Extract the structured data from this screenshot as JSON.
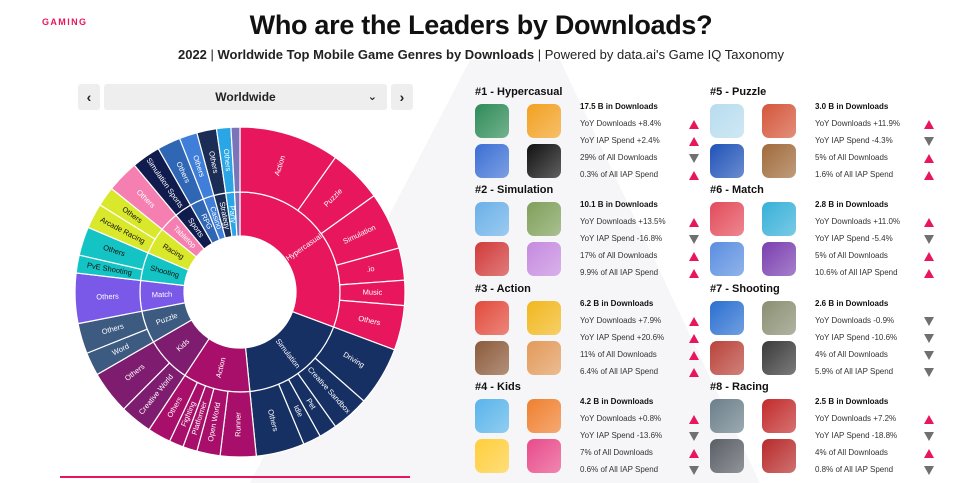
{
  "brand": "GAMING",
  "title": "Who are the Leaders by Downloads?",
  "subtitle": {
    "year": "2022",
    "sep": " | ",
    "main": "Worldwide Top Mobile Game Genres by Downloads",
    "sep2": " | ",
    "rest": "Powered by data.ai's Game IQ Taxonomy"
  },
  "region": {
    "selected": "Worldwide",
    "prev": "‹",
    "next": "›",
    "chevron": "⌄"
  },
  "colors": {
    "accent": "#e8175d",
    "arrow_up": "#e8175d",
    "arrow_down": "#707070"
  },
  "chart_data": {
    "type": "sunburst",
    "inner": [
      {
        "label": "Hypercasual",
        "value": 17.5,
        "color": "#e8175d"
      },
      {
        "label": "Simulation",
        "value": 10.1,
        "color": "#173063"
      },
      {
        "label": "Action",
        "value": 6.2,
        "color": "#a80f6a"
      },
      {
        "label": "Kids",
        "value": 4.2,
        "color": "#7e1c70"
      },
      {
        "label": "Puzzle",
        "value": 3.0,
        "color": "#3d5a80"
      },
      {
        "label": "Match",
        "value": 2.8,
        "color": "#7a58e8"
      },
      {
        "label": "Shooting",
        "value": 2.6,
        "color": "#14c4c4"
      },
      {
        "label": "Racing",
        "value": 2.5,
        "color": "#d9e82a"
      },
      {
        "label": "Tabletop",
        "value": 1.8,
        "color": "#f47fb0"
      },
      {
        "label": "Sports",
        "value": 1.6,
        "color": "#0f1c4d"
      },
      {
        "label": "RPG",
        "value": 1.3,
        "color": "#2f67b5"
      },
      {
        "label": "Casino",
        "value": 1.0,
        "color": "#3f7fd9"
      },
      {
        "label": "Strategy",
        "value": 1.1,
        "color": "#1b2d55"
      },
      {
        "label": "Party",
        "value": 0.8,
        "color": "#2aa6e6"
      },
      {
        "label": "",
        "value": 0.5,
        "color": "#7c74b8"
      }
    ],
    "outer": [
      {
        "parent": "Hypercasual",
        "label": "Action",
        "value": 5.6,
        "color": "#e8175d"
      },
      {
        "parent": "Hypercasual",
        "label": "Puzzle",
        "value": 3.0,
        "color": "#e8175d"
      },
      {
        "parent": "Hypercasual",
        "label": "Simulation",
        "value": 3.2,
        "color": "#e8175d"
      },
      {
        "parent": "Hypercasual",
        "label": ".io",
        "value": 1.8,
        "color": "#e8175d"
      },
      {
        "parent": "Hypercasual",
        "label": "Music",
        "value": 1.4,
        "color": "#e8175d"
      },
      {
        "parent": "Hypercasual",
        "label": "Others",
        "value": 2.5,
        "color": "#e8175d"
      },
      {
        "parent": "Simulation",
        "label": "Driving",
        "value": 3.3,
        "color": "#173063"
      },
      {
        "parent": "Simulation",
        "label": "Creative Sandbox",
        "value": 2.1,
        "color": "#173063"
      },
      {
        "parent": "Simulation",
        "label": "Pet",
        "value": 1.0,
        "color": "#173063"
      },
      {
        "parent": "Simulation",
        "label": "Idle",
        "value": 1.0,
        "color": "#173063"
      },
      {
        "parent": "Simulation",
        "label": "Others",
        "value": 2.7,
        "color": "#173063"
      },
      {
        "parent": "Action",
        "label": "Runner",
        "value": 2.0,
        "color": "#a80f6a"
      },
      {
        "parent": "Action",
        "label": "Open World",
        "value": 1.3,
        "color": "#a80f6a"
      },
      {
        "parent": "Action",
        "label": "Platformer",
        "value": 0.8,
        "color": "#a80f6a"
      },
      {
        "parent": "Action",
        "label": "Fighting",
        "value": 0.8,
        "color": "#a80f6a"
      },
      {
        "parent": "Action",
        "label": "Others",
        "value": 1.3,
        "color": "#a80f6a"
      },
      {
        "parent": "Kids",
        "label": "Creative World",
        "value": 1.8,
        "color": "#7e1c70"
      },
      {
        "parent": "Kids",
        "label": "Others",
        "value": 2.4,
        "color": "#7e1c70"
      },
      {
        "parent": "Puzzle",
        "label": "Word",
        "value": 1.3,
        "color": "#3d5a80"
      },
      {
        "parent": "Puzzle",
        "label": "Others",
        "value": 1.7,
        "color": "#3d5a80"
      },
      {
        "parent": "Match",
        "label": "Others",
        "value": 2.8,
        "color": "#7a58e8"
      },
      {
        "parent": "Shooting",
        "label": "PvE Shooting",
        "value": 1.0,
        "color": "#14c4c4"
      },
      {
        "parent": "Shooting",
        "label": "Others",
        "value": 1.6,
        "color": "#14c4c4"
      },
      {
        "parent": "Racing",
        "label": "Arcade Racing",
        "value": 1.4,
        "color": "#d9e82a"
      },
      {
        "parent": "Racing",
        "label": "Others",
        "value": 1.1,
        "color": "#d9e82a"
      },
      {
        "parent": "Tabletop",
        "label": "Others",
        "value": 1.8,
        "color": "#f47fb0"
      },
      {
        "parent": "Sports",
        "label": "Simulation Sports",
        "value": 1.6,
        "color": "#0f1c4d"
      },
      {
        "parent": "RPG",
        "label": "Others",
        "value": 1.3,
        "color": "#2f67b5"
      },
      {
        "parent": "Casino",
        "label": "Others",
        "value": 1.0,
        "color": "#3f7fd9"
      },
      {
        "parent": "Strategy",
        "label": "Others",
        "value": 1.1,
        "color": "#1b2d55"
      },
      {
        "parent": "Party",
        "label": "Others",
        "value": 0.8,
        "color": "#2aa6e6"
      },
      {
        "parent": "",
        "label": "",
        "value": 0.5,
        "color": "#7c74b8"
      }
    ]
  },
  "genres": [
    {
      "title": "#1 - Hypercasual",
      "icons": [
        "#2e8b57",
        "#f2a020",
        "#3b6fd4",
        "#111111"
      ],
      "stats": [
        "17.5 B in Downloads",
        "YoY Downloads +8.4%",
        "YoY IAP Spend +2.4%",
        "29% of All Downloads",
        "0.3% of All IAP Spend"
      ],
      "arrows": [
        "up",
        "up",
        "down",
        "up"
      ]
    },
    {
      "title": "#2 - Simulation",
      "icons": [
        "#6ab0e8",
        "#7fa05a",
        "#d13a3a",
        "#c58adf"
      ],
      "stats": [
        "10.1 B in Downloads",
        "YoY Downloads +13.5%",
        "YoY IAP Spend -16.8%",
        "17% of All Downloads",
        "9.9% of All IAP Spend"
      ],
      "arrows": [
        "up",
        "down",
        "up",
        "up"
      ]
    },
    {
      "title": "#3 - Action",
      "icons": [
        "#e24a3b",
        "#f1b71d",
        "#8c5a3a",
        "#e29a5a"
      ],
      "stats": [
        "6.2 B in Downloads",
        "YoY Downloads +7.9%",
        "YoY IAP Spend +20.6%",
        "11% of All Downloads",
        "6.4% of All IAP Spend"
      ],
      "arrows": [
        "up",
        "up",
        "up",
        "up"
      ]
    },
    {
      "title": "#4 - Kids",
      "icons": [
        "#59b4ea",
        "#ef7f2e",
        "#ffce3a",
        "#e84a8a"
      ],
      "stats": [
        "4.2 B in Downloads",
        "YoY Downloads +0.8%",
        "YoY IAP Spend -13.6%",
        "7% of All Downloads",
        "0.6% of All IAP Spend"
      ],
      "arrows": [
        "up",
        "down",
        "up",
        "down"
      ]
    },
    {
      "title": "#5 - Puzzle",
      "icons": [
        "#b7dcef",
        "#d4563a",
        "#2053b8",
        "#a06a3a"
      ],
      "stats": [
        "3.0 B in Downloads",
        "YoY Downloads +11.9%",
        "YoY IAP Spend -4.3%",
        "5% of All Downloads",
        "1.6% of All IAP Spend"
      ],
      "arrows": [
        "up",
        "down",
        "up",
        "up"
      ]
    },
    {
      "title": "#6 - Match",
      "icons": [
        "#e34b5a",
        "#37b0d8",
        "#5a8ee0",
        "#7a3fb0"
      ],
      "stats": [
        "2.8 B in Downloads",
        "YoY Downloads +11.0%",
        "YoY IAP Spend -5.4%",
        "5% of All Downloads",
        "10.6% of All IAP Spend"
      ],
      "arrows": [
        "up",
        "down",
        "up",
        "up"
      ]
    },
    {
      "title": "#7 - Shooting",
      "icons": [
        "#2a6fd1",
        "#8a8f72",
        "#b9433a",
        "#3a3a3a"
      ],
      "stats": [
        "2.6 B in Downloads",
        "YoY Downloads -0.9%",
        "YoY IAP Spend -10.6%",
        "4% of All Downloads",
        "5.9% of All IAP Spend"
      ],
      "arrows": [
        "down",
        "down",
        "down",
        "down"
      ]
    },
    {
      "title": "#8 - Racing",
      "icons": [
        "#6b7f8a",
        "#c22b2b",
        "#5a5f66",
        "#b82a2a"
      ],
      "stats": [
        "2.5 B in Downloads",
        "YoY Downloads +7.2%",
        "YoY IAP Spend -18.8%",
        "4% of All Downloads",
        "0.8% of All IAP Spend"
      ],
      "arrows": [
        "up",
        "down",
        "up",
        "down"
      ]
    }
  ]
}
